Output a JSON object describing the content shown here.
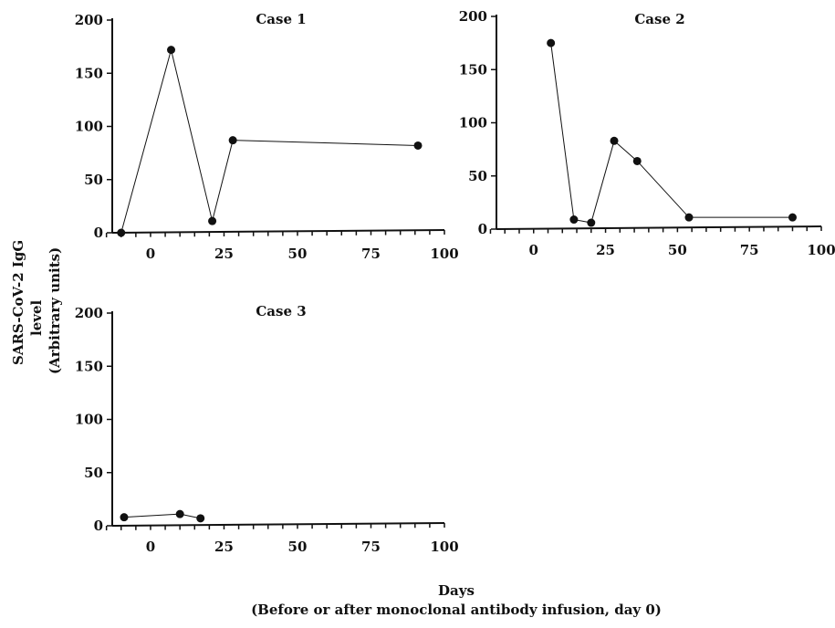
{
  "figure": {
    "ylabel_lines": [
      "SARS-CoV-2 IgG",
      "level",
      "(Arbitrary units)"
    ],
    "xlabel_lines": [
      "Days",
      "(Before or after monoclonal antibody infusion, day 0)"
    ]
  },
  "chart_data": [
    {
      "type": "line",
      "title": "Case 1",
      "x": [
        -10,
        7,
        21,
        28,
        91
      ],
      "y": [
        0,
        172,
        11,
        87,
        82
      ],
      "xlim": [
        -18,
        100
      ],
      "ylim": [
        0,
        200
      ],
      "xticks": [
        0,
        25,
        50,
        75,
        100
      ],
      "yticks": [
        0,
        50,
        100,
        150,
        200
      ],
      "grid": false
    },
    {
      "type": "line",
      "title": "Case 2",
      "x": [
        6,
        14,
        20,
        28,
        36,
        54,
        90
      ],
      "y": [
        175,
        9,
        6,
        83,
        64,
        11,
        11
      ],
      "xlim": [
        -18,
        100
      ],
      "ylim": [
        0,
        200
      ],
      "xticks": [
        0,
        25,
        50,
        75,
        100
      ],
      "yticks": [
        0,
        50,
        100,
        150,
        200
      ],
      "grid": false
    },
    {
      "type": "line",
      "title": "Case 3",
      "x": [
        -9,
        10,
        17
      ],
      "y": [
        8,
        11,
        7
      ],
      "xlim": [
        -18,
        100
      ],
      "ylim": [
        0,
        200
      ],
      "xticks": [
        0,
        25,
        50,
        75,
        100
      ],
      "yticks": [
        0,
        50,
        100,
        150,
        200
      ],
      "grid": false
    }
  ]
}
